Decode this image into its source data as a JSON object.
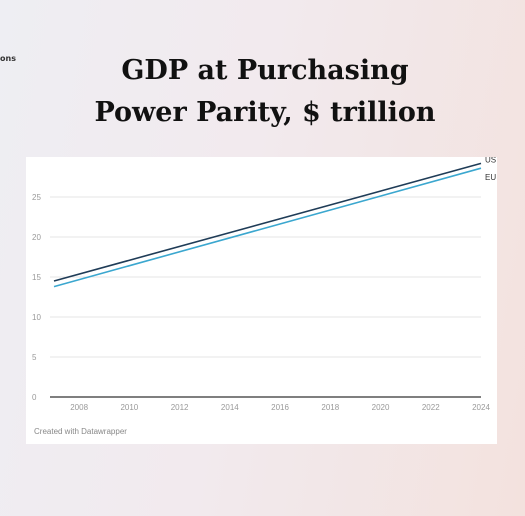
{
  "corner_text": "ons",
  "title_lines": [
    "GDP at Purchasing",
    "Power Parity, $ trillion"
  ],
  "credit": "Created with Datawrapper",
  "colors": {
    "US": "#1f3c57",
    "EU": "#3ba7cf",
    "grid": "#e6e6e6",
    "axis": "#555555",
    "tick_text": "#999999"
  },
  "chart_data": {
    "type": "line",
    "title": "GDP at Purchasing Power Parity, $ trillion",
    "xlabel": "",
    "ylabel": "",
    "xlim": [
      2007,
      2024
    ],
    "ylim": [
      0,
      29
    ],
    "x_ticks": [
      2008,
      2010,
      2012,
      2014,
      2016,
      2018,
      2020,
      2022,
      2024
    ],
    "y_ticks": [
      0,
      5,
      10,
      15,
      20,
      25
    ],
    "grid": true,
    "legend": "inline-right",
    "series": [
      {
        "name": "US",
        "x": [
          2007,
          2024
        ],
        "values": [
          14.5,
          29.2
        ]
      },
      {
        "name": "EU",
        "x": [
          2007,
          2024
        ],
        "values": [
          13.8,
          28.6
        ]
      }
    ]
  }
}
